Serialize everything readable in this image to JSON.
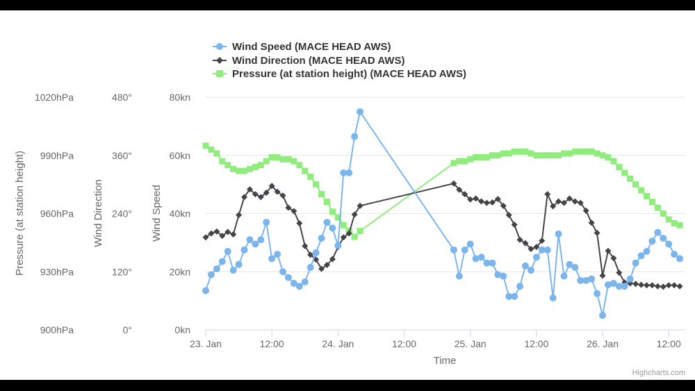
{
  "credits": "Highcharts.com",
  "colors": {
    "wind_speed": "#7cb5ec",
    "wind_direction": "#434348",
    "pressure": "#90ed7d",
    "grid": "#e6e6e6",
    "axis_line": "#ccd6eb"
  },
  "chart_data": {
    "type": "line",
    "title": "",
    "legend": {
      "placement": "top",
      "items": [
        {
          "label": "Wind Speed (MACE HEAD AWS)",
          "marker": "circle"
        },
        {
          "label": "Wind Direction (MACE HEAD AWS)",
          "marker": "diamond"
        },
        {
          "label": "Pressure (at station height) (MACE HEAD AWS)",
          "marker": "square"
        }
      ]
    },
    "x_axis": {
      "title": "Time",
      "range": [
        "23 Jan 00:00",
        "26 Jan 23:00"
      ],
      "ticks": [
        {
          "label": "23. Jan",
          "hours": 0
        },
        {
          "label": "12:00",
          "hours": 12
        },
        {
          "label": "24. Jan",
          "hours": 24
        },
        {
          "label": "12:00",
          "hours": 36
        },
        {
          "label": "25. Jan",
          "hours": 48
        },
        {
          "label": "12:00",
          "hours": 60
        },
        {
          "label": "26. Jan",
          "hours": 72
        },
        {
          "label": "12:00",
          "hours": 84
        }
      ]
    },
    "y_axes": [
      {
        "id": "speed",
        "title": "Wind Speed",
        "unit": "kn",
        "min": 0,
        "max": 80,
        "ticks": [
          "0kn",
          "20kn",
          "40kn",
          "60kn",
          "80kn"
        ],
        "grid": true
      },
      {
        "id": "direction",
        "title": "Wind Direction",
        "unit": "°",
        "min": 0,
        "max": 480,
        "ticks": [
          "0°",
          "120°",
          "240°",
          "360°",
          "480°"
        ],
        "grid": false
      },
      {
        "id": "pressure",
        "title": "Pressure (at station height)",
        "unit": "hPa",
        "min": 900,
        "max": 1020,
        "ticks": [
          "900hPa",
          "930hPa",
          "960hPa",
          "990hPa",
          "1020hPa"
        ],
        "grid": false
      }
    ],
    "series": [
      {
        "name": "Wind Speed (MACE HEAD AWS)",
        "axis": "speed",
        "x": [
          0,
          1,
          2,
          3,
          4,
          5,
          6,
          7,
          8,
          9,
          10,
          11,
          12,
          13,
          14,
          15,
          16,
          17,
          18,
          19,
          20,
          21,
          22,
          23,
          24,
          25,
          26,
          27,
          28,
          45,
          46,
          47,
          48,
          49,
          50,
          51,
          52,
          53,
          54,
          55,
          56,
          57,
          58,
          59,
          60,
          61,
          62,
          63,
          64,
          65,
          66,
          67,
          68,
          69,
          70,
          71,
          72,
          73,
          74,
          75,
          76,
          77,
          78,
          79,
          80,
          81,
          82,
          83,
          84,
          85,
          86
        ],
        "values": [
          13.5,
          19,
          21,
          23.5,
          27,
          20.5,
          22.5,
          27.5,
          31,
          29.5,
          31,
          37,
          24.5,
          26,
          20,
          18,
          16,
          15,
          16.5,
          21.5,
          26.5,
          31.5,
          37,
          35,
          29,
          54,
          54,
          66.5,
          75,
          27.5,
          18.5,
          27.5,
          29.5,
          24.5,
          25,
          23,
          23,
          19,
          18.5,
          11.5,
          11.5,
          15,
          22,
          20.5,
          25,
          27.5,
          27.5,
          11,
          33,
          18.5,
          22.5,
          21.5,
          17,
          17,
          17.5,
          12.5,
          5,
          15.5,
          16,
          15,
          15,
          17.5,
          23,
          25.5,
          27,
          30.5,
          33.5,
          31.5,
          29.5,
          26,
          24.5
        ]
      },
      {
        "name": "Wind Direction (MACE HEAD AWS)",
        "axis": "direction",
        "x": [
          0,
          1,
          2,
          3,
          4,
          5,
          6,
          7,
          8,
          9,
          10,
          11,
          12,
          13,
          14,
          15,
          16,
          17,
          18,
          19,
          20,
          21,
          22,
          23,
          24,
          25,
          26,
          27,
          28,
          45,
          46,
          47,
          48,
          49,
          50,
          51,
          52,
          53,
          54,
          55,
          56,
          57,
          58,
          59,
          60,
          61,
          62,
          63,
          64,
          65,
          66,
          67,
          68,
          69,
          70,
          71,
          72,
          73,
          74,
          75,
          76,
          77,
          78,
          79,
          80,
          81,
          82,
          83,
          84,
          85,
          86
        ],
        "values": [
          191,
          199,
          203,
          194,
          202,
          197,
          237,
          274,
          290,
          280,
          274,
          283,
          297,
          285,
          277,
          252,
          245,
          220,
          173,
          155,
          145,
          126,
          134,
          146,
          171,
          191,
          199,
          238,
          256,
          302,
          289,
          280,
          269,
          271,
          265,
          262,
          263,
          270,
          256,
          237,
          217,
          186,
          179,
          167,
          171,
          184,
          280,
          255,
          265,
          262,
          271,
          265,
          262,
          246,
          221,
          200,
          112,
          163,
          148,
          118,
          98,
          96,
          95,
          93,
          92,
          92,
          90,
          89,
          92,
          92,
          90
        ]
      },
      {
        "name": "Pressure (at station height) (MACE HEAD AWS)",
        "axis": "pressure",
        "x": [
          0,
          1,
          2,
          3,
          4,
          5,
          6,
          7,
          8,
          9,
          10,
          11,
          12,
          13,
          14,
          15,
          16,
          17,
          18,
          19,
          20,
          21,
          22,
          23,
          24,
          25,
          26,
          27,
          28,
          45,
          46,
          47,
          48,
          49,
          50,
          51,
          52,
          53,
          54,
          55,
          56,
          57,
          58,
          59,
          60,
          61,
          62,
          63,
          64,
          65,
          66,
          67,
          68,
          69,
          70,
          71,
          72,
          73,
          74,
          75,
          76,
          77,
          78,
          79,
          80,
          81,
          82,
          83,
          84,
          85,
          86
        ],
        "values": [
          995,
          993,
          991,
          987,
          985,
          983,
          982,
          982,
          983,
          984,
          985,
          987,
          989,
          989,
          988,
          988,
          987,
          985,
          982,
          979,
          975,
          970,
          966,
          961,
          958,
          954,
          951,
          948,
          951,
          986,
          987,
          987,
          988,
          989,
          989,
          989,
          990,
          990,
          991,
          991,
          992,
          992,
          992,
          991,
          990,
          990,
          990,
          990,
          990,
          991,
          991,
          992,
          992,
          992,
          992,
          991,
          990,
          989,
          987,
          984,
          981,
          978,
          975,
          972,
          969,
          966,
          963,
          960,
          957,
          955,
          954
        ]
      }
    ]
  }
}
